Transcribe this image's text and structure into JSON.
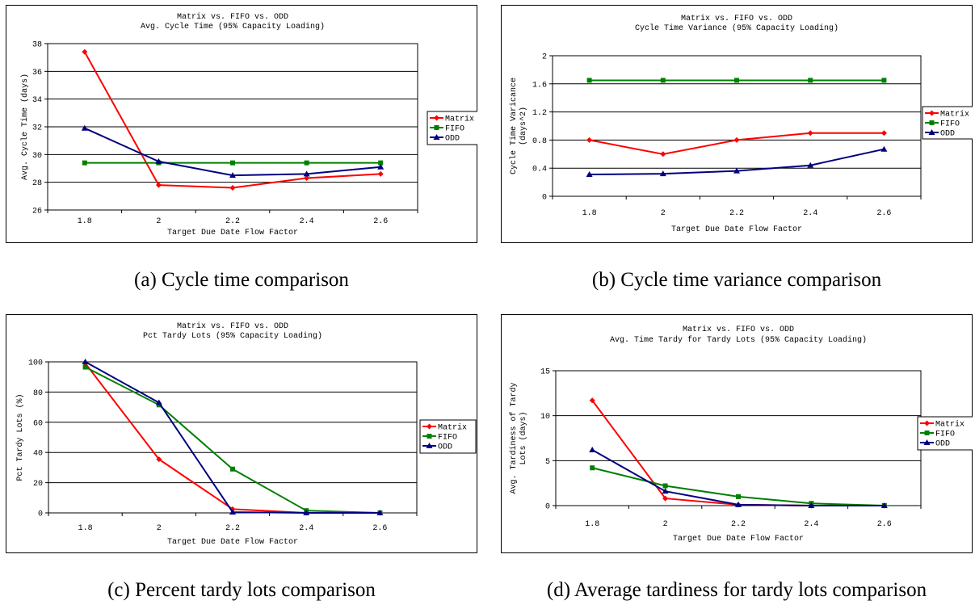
{
  "colors": {
    "matrix": "#ff0000",
    "fifo": "#008000",
    "odd": "#000080"
  },
  "chart_data": [
    {
      "type": "line",
      "title": "Matrix vs. FIFO vs. ODD",
      "subtitle": "Avg. Cycle Time (95% Capacity Loading)",
      "xlabel": "Target Due Date Flow Factor",
      "ylabel": [
        "Avg. Cycle Time (days)"
      ],
      "x": [
        1.8,
        2,
        2.2,
        2.4,
        2.6
      ],
      "x_ticks": [
        "1.8",
        "2",
        "2.2",
        "2.4",
        "2.6"
      ],
      "ylim": [
        26,
        38
      ],
      "y_ticks": [
        "26",
        "28",
        "30",
        "32",
        "34",
        "36",
        "38"
      ],
      "grid": true,
      "legend": "right",
      "series": [
        {
          "name": "Matrix",
          "marker": "diamond",
          "values": [
            37.4,
            27.8,
            27.6,
            28.3,
            28.6
          ]
        },
        {
          "name": "FIFO",
          "marker": "square",
          "values": [
            29.4,
            29.4,
            29.4,
            29.4,
            29.4
          ]
        },
        {
          "name": "ODD",
          "marker": "triangle",
          "values": [
            31.9,
            29.5,
            28.5,
            28.6,
            29.1
          ]
        }
      ],
      "caption": "(a) Cycle time comparison"
    },
    {
      "type": "line",
      "title": "Matrix vs. FIFO vs. ODD",
      "subtitle": "Cycle Time Variance (95% Capacity Loading)",
      "xlabel": "Target Due Date Flow Factor",
      "ylabel": [
        "Cycle Time Varicance",
        "(days^2)"
      ],
      "x": [
        1.8,
        2,
        2.2,
        2.4,
        2.6
      ],
      "x_ticks": [
        "1.8",
        "2",
        "2.2",
        "2.4",
        "2.6"
      ],
      "ylim": [
        0,
        2
      ],
      "y_ticks": [
        "0",
        "0.4",
        "0.8",
        "1.2",
        "1.6",
        "2"
      ],
      "grid": true,
      "legend": "right",
      "series": [
        {
          "name": "Matrix",
          "marker": "diamond",
          "values": [
            0.8,
            0.6,
            0.8,
            0.9,
            0.9
          ]
        },
        {
          "name": "FIFO",
          "marker": "square",
          "values": [
            1.65,
            1.65,
            1.65,
            1.65,
            1.65
          ]
        },
        {
          "name": "ODD",
          "marker": "triangle",
          "values": [
            0.31,
            0.32,
            0.36,
            0.44,
            0.67
          ]
        }
      ],
      "caption": "(b) Cycle time variance comparison"
    },
    {
      "type": "line",
      "title": "Matrix vs. FIFO vs. ODD",
      "subtitle": "Pct Tardy Lots (95% Capacity Loading)",
      "xlabel": "Target Due Date Flow Factor",
      "ylabel": [
        "Pct Tardy Lots (%)"
      ],
      "x": [
        1.8,
        2,
        2.2,
        2.4,
        2.6
      ],
      "x_ticks": [
        "1.8",
        "2",
        "2.2",
        "2.4",
        "2.6"
      ],
      "ylim": [
        0,
        100
      ],
      "y_ticks": [
        "0",
        "20",
        "40",
        "60",
        "80",
        "100"
      ],
      "grid": true,
      "legend": "right",
      "series": [
        {
          "name": "Matrix",
          "marker": "diamond",
          "values": [
            99,
            35.5,
            2.5,
            0,
            0
          ]
        },
        {
          "name": "FIFO",
          "marker": "square",
          "values": [
            96.5,
            71.5,
            29,
            1.5,
            0
          ]
        },
        {
          "name": "ODD",
          "marker": "triangle",
          "values": [
            100,
            73,
            0.5,
            0,
            0
          ]
        }
      ],
      "caption": "(c) Percent tardy lots comparison"
    },
    {
      "type": "line",
      "title": "Matrix vs. FIFO vs. ODD",
      "subtitle": "Avg. Time Tardy for Tardy Lots (95% Capacity Loading)",
      "xlabel": "Target Due Date Flow Factor",
      "ylabel": [
        "Avg. Tardiness of Tardy",
        "Lots (days)"
      ],
      "x": [
        1.8,
        2,
        2.2,
        2.4,
        2.6
      ],
      "x_ticks": [
        "1.8",
        "2",
        "2.2",
        "2.4",
        "2.6"
      ],
      "ylim": [
        0,
        15
      ],
      "y_ticks": [
        "0",
        "5",
        "10",
        "15"
      ],
      "grid": true,
      "legend": "right",
      "series": [
        {
          "name": "Matrix",
          "marker": "diamond",
          "values": [
            11.7,
            0.8,
            0.1,
            0,
            0
          ]
        },
        {
          "name": "FIFO",
          "marker": "square",
          "values": [
            4.2,
            2.2,
            1.0,
            0.25,
            0
          ]
        },
        {
          "name": "ODD",
          "marker": "triangle",
          "values": [
            6.2,
            1.6,
            0.1,
            0,
            0
          ]
        }
      ],
      "caption": "(d)  Average tardiness for tardy lots comparison"
    }
  ]
}
